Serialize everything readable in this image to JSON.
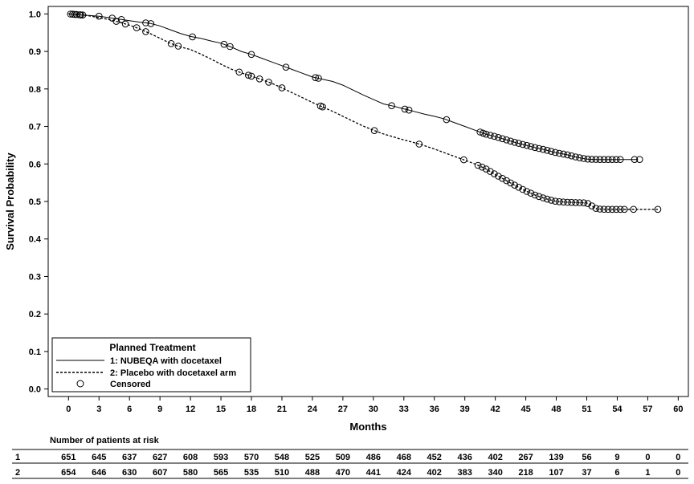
{
  "chart_data": {
    "type": "line",
    "title": "",
    "xlabel": "Months",
    "ylabel": "Survival Probability",
    "xlim": [
      -2,
      61
    ],
    "ylim": [
      -0.02,
      1.02
    ],
    "x_ticks": [
      "0",
      "3",
      "6",
      "9",
      "12",
      "15",
      "18",
      "21",
      "24",
      "27",
      "30",
      "33",
      "36",
      "39",
      "42",
      "45",
      "48",
      "51",
      "54",
      "57",
      "60"
    ],
    "y_ticks": [
      "0.0",
      "0.1",
      "0.2",
      "0.3",
      "0.4",
      "0.5",
      "0.6",
      "0.7",
      "0.8",
      "0.9",
      "1.0"
    ],
    "grid": false,
    "legend_position": "bottom-left",
    "legend": {
      "title": "Planned Treatment",
      "entries": [
        {
          "label": "1: NUBEQA with docetaxel",
          "style": "solid"
        },
        {
          "label": "2: Placebo with docetaxel arm",
          "style": "dashed"
        },
        {
          "label": "Censored",
          "style": "circle"
        }
      ]
    },
    "series": [
      {
        "name": "1: NUBEQA with docetaxel",
        "style": "solid",
        "x": [
          0,
          1,
          2,
          3,
          4,
          5,
          6,
          7,
          8,
          9,
          10,
          11,
          12,
          13,
          14,
          15,
          16,
          17,
          18,
          19,
          20,
          21,
          22,
          23,
          24,
          25,
          26,
          27,
          28,
          29,
          30,
          31,
          32,
          33,
          34,
          35,
          36,
          37,
          38,
          39,
          40,
          41,
          42,
          43,
          44,
          45,
          46,
          47,
          48,
          49,
          50,
          51,
          52,
          53,
          54,
          55,
          56
        ],
        "y": [
          1.0,
          0.998,
          0.996,
          0.994,
          0.99,
          0.986,
          0.982,
          0.978,
          0.975,
          0.968,
          0.958,
          0.948,
          0.94,
          0.935,
          0.928,
          0.922,
          0.912,
          0.9,
          0.892,
          0.882,
          0.872,
          0.862,
          0.852,
          0.842,
          0.832,
          0.826,
          0.82,
          0.81,
          0.797,
          0.784,
          0.772,
          0.76,
          0.754,
          0.747,
          0.74,
          0.733,
          0.727,
          0.72,
          0.71,
          0.7,
          0.69,
          0.68,
          0.673,
          0.665,
          0.657,
          0.65,
          0.643,
          0.637,
          0.63,
          0.625,
          0.618,
          0.613,
          0.612,
          0.612,
          0.612,
          0.612,
          0.612
        ]
      },
      {
        "name": "2: Placebo with docetaxel arm",
        "style": "dashed",
        "x": [
          0,
          1,
          2,
          3,
          4,
          5,
          6,
          7,
          8,
          9,
          10,
          11,
          12,
          13,
          14,
          15,
          16,
          17,
          18,
          19,
          20,
          21,
          22,
          23,
          24,
          25,
          26,
          27,
          28,
          29,
          30,
          31,
          32,
          33,
          34,
          35,
          36,
          37,
          38,
          39,
          40,
          41,
          42,
          43,
          44,
          45,
          46,
          47,
          48,
          49,
          50,
          51,
          52,
          53,
          54,
          55,
          56,
          57,
          58
        ],
        "y": [
          1.0,
          0.998,
          0.995,
          0.99,
          0.985,
          0.978,
          0.97,
          0.96,
          0.948,
          0.935,
          0.922,
          0.912,
          0.905,
          0.893,
          0.88,
          0.866,
          0.853,
          0.843,
          0.834,
          0.825,
          0.815,
          0.803,
          0.79,
          0.777,
          0.764,
          0.752,
          0.74,
          0.727,
          0.714,
          0.701,
          0.69,
          0.68,
          0.672,
          0.664,
          0.657,
          0.649,
          0.64,
          0.63,
          0.62,
          0.61,
          0.6,
          0.588,
          0.572,
          0.557,
          0.542,
          0.528,
          0.516,
          0.507,
          0.5,
          0.498,
          0.497,
          0.496,
          0.48,
          0.479,
          0.479,
          0.479,
          0.479,
          0.479,
          0.479
        ]
      }
    ],
    "censored": [
      {
        "series": 0,
        "x": [
          0.2,
          0.6,
          1.1,
          1.4,
          3.0,
          4.3,
          5.2,
          7.6,
          8.1,
          12.2,
          15.3,
          15.9,
          18.0,
          21.4,
          24.3,
          24.6,
          31.8,
          33.1,
          33.5,
          37.2,
          40.5,
          40.8,
          41.1,
          41.5,
          41.9,
          42.3,
          42.7,
          43.1,
          43.5,
          43.9,
          44.3,
          44.7,
          45.1,
          45.5,
          45.9,
          46.3,
          46.7,
          47.1,
          47.5,
          47.9,
          48.3,
          48.7,
          49.1,
          49.5,
          49.9,
          50.3,
          50.7,
          51.1,
          51.5,
          51.9,
          52.3,
          52.7,
          53.1,
          53.5,
          53.9,
          54.3,
          55.7,
          56.2
        ]
      },
      {
        "series": 1,
        "x": [
          0.4,
          0.8,
          1.2,
          4.7,
          5.6,
          6.7,
          7.6,
          10.1,
          10.8,
          16.8,
          17.7,
          18.0,
          18.8,
          19.7,
          21.0,
          24.8,
          25.0,
          30.1,
          34.5,
          38.9,
          40.3,
          40.7,
          41.1,
          41.5,
          41.9,
          42.3,
          42.7,
          43.1,
          43.5,
          43.9,
          44.3,
          44.7,
          45.1,
          45.5,
          45.9,
          46.3,
          46.7,
          47.1,
          47.5,
          47.9,
          48.3,
          48.7,
          49.1,
          49.5,
          49.9,
          50.3,
          50.7,
          51.1,
          51.5,
          51.9,
          52.3,
          52.7,
          53.1,
          53.5,
          53.9,
          54.3,
          54.7,
          55.6,
          58.0
        ]
      }
    ],
    "risk_table": {
      "title": "Number of patients at risk",
      "rows": [
        {
          "label": "1",
          "values": [
            "651",
            "645",
            "637",
            "627",
            "608",
            "593",
            "570",
            "548",
            "525",
            "509",
            "486",
            "468",
            "452",
            "436",
            "402",
            "267",
            "139",
            "56",
            "9",
            "0",
            "0"
          ]
        },
        {
          "label": "2",
          "values": [
            "654",
            "646",
            "630",
            "607",
            "580",
            "565",
            "535",
            "510",
            "488",
            "470",
            "441",
            "424",
            "402",
            "383",
            "340",
            "218",
            "107",
            "37",
            "6",
            "1",
            "0"
          ]
        }
      ]
    }
  }
}
